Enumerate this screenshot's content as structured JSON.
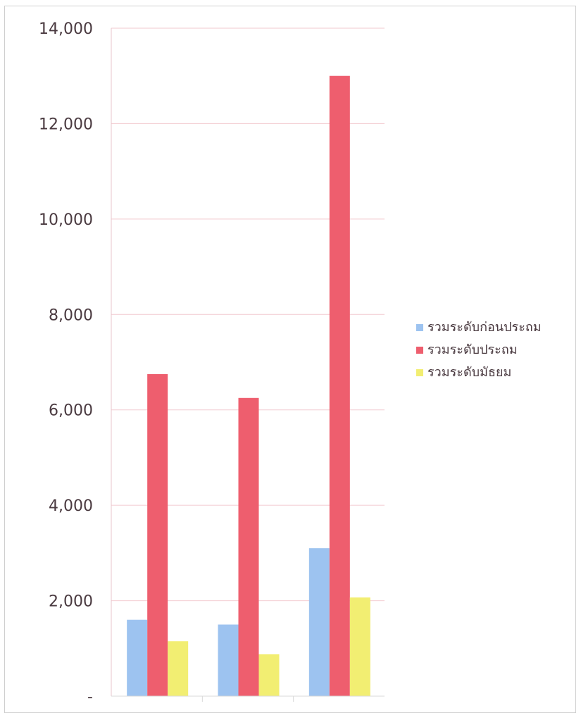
{
  "chart_data": {
    "type": "bar",
    "title": "",
    "xlabel": "",
    "ylabel": "",
    "ylim": [
      0,
      14000
    ],
    "yticks": [
      0,
      2000,
      4000,
      6000,
      8000,
      10000,
      12000,
      14000
    ],
    "ytick_labels": [
      "-",
      "2,000",
      "4,000",
      "6,000",
      "8,000",
      "10,000",
      "12,000",
      "14,000"
    ],
    "categories": [
      "",
      "",
      ""
    ],
    "grid": true,
    "legend_position": "right",
    "series": [
      {
        "name": "รวมระดับก่อนประถม",
        "color": "#9DC3F0",
        "values": [
          1600,
          1500,
          3100
        ]
      },
      {
        "name": "รวมระดับประถม",
        "color": "#EE5E6E",
        "values": [
          6750,
          6250,
          13000
        ]
      },
      {
        "name": "รวมระดับมัธยม",
        "color": "#F2EE72",
        "values": [
          1150,
          880,
          2070
        ]
      }
    ]
  }
}
